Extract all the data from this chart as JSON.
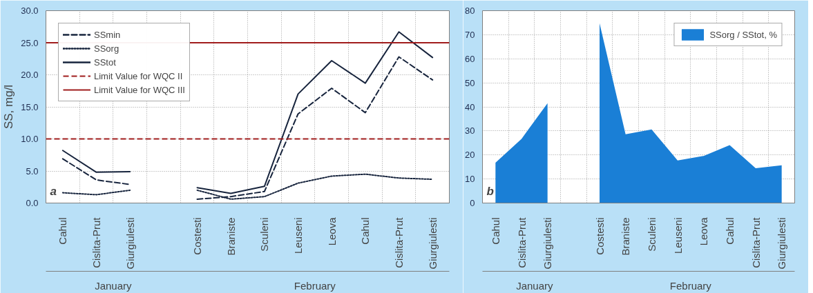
{
  "chart_data": [
    {
      "type": "line",
      "ylabel": "SS, mg/l",
      "categories": [
        "Cahul",
        "Cislita-Prut",
        "Giurgiulesti",
        null,
        "Costesti",
        "Braniste",
        "Sculeni",
        "Leuseni",
        "Leova",
        "Cahul",
        "Cislita-Prut",
        "Giurgiulesti"
      ],
      "series": [
        {
          "name": "SSmin",
          "color": "#17243d",
          "line_style": "dashed",
          "values": [
            6.9,
            3.6,
            2.9,
            null,
            0.6,
            1.0,
            1.8,
            13.9,
            17.9,
            14.1,
            22.8,
            19.2
          ]
        },
        {
          "name": "SSorg",
          "color": "#17243d",
          "line_style": "dotted",
          "values": [
            1.6,
            1.3,
            2.0,
            null,
            2.0,
            0.6,
            1.0,
            3.1,
            4.2,
            4.5,
            3.9,
            3.7
          ]
        },
        {
          "name": "SStot",
          "color": "#17243d",
          "line_style": "solid",
          "values": [
            8.2,
            4.8,
            4.9,
            null,
            2.4,
            1.5,
            2.6,
            17.0,
            22.2,
            18.7,
            26.7,
            22.7
          ]
        }
      ],
      "ref_lines": [
        {
          "axis": "y",
          "value": 10,
          "label": "Limit Value for WQC II",
          "color": "#a01c1c",
          "line_style": "dashed"
        },
        {
          "axis": "y",
          "value": 25,
          "label": "Limit Value for WQC III",
          "color": "#a01c1c",
          "line_style": "solid"
        }
      ],
      "ylim": [
        0,
        30
      ],
      "yticks": [
        {
          "value": 0,
          "label": "0.0"
        },
        {
          "value": 5,
          "label": "5.0"
        },
        {
          "value": 10,
          "label": "10.0"
        },
        {
          "value": 15,
          "label": "15.0"
        },
        {
          "value": 20,
          "label": "20.0"
        },
        {
          "value": 25,
          "label": "25.0"
        },
        {
          "value": 30,
          "label": "30.0"
        }
      ],
      "grid": true,
      "legend": "top left",
      "marker": "none",
      "annotations": [
        "a",
        "January",
        "February"
      ]
    },
    {
      "type": "area",
      "categories": [
        "Cahul",
        "Cislita-Prut",
        "Giurgiulesti",
        null,
        "Costesti",
        "Braniste",
        "Sculeni",
        "Leuseni",
        "Leova",
        "Cahul",
        "Cislita-Prut",
        "Giurgiulesti"
      ],
      "series": [
        {
          "name": "SSorg / SStot, %",
          "color": "#1a7fd6",
          "values": [
            16.8,
            26.7,
            41.5,
            null,
            74.8,
            28.6,
            30.6,
            17.7,
            19.6,
            24.1,
            14.5,
            15.7
          ]
        }
      ],
      "ylim": [
        0,
        80
      ],
      "yticks": [
        0,
        10,
        20,
        30,
        40,
        50,
        60,
        70,
        80
      ],
      "grid": true,
      "legend": "top right",
      "annotations": [
        "b",
        "January",
        "February"
      ]
    }
  ]
}
